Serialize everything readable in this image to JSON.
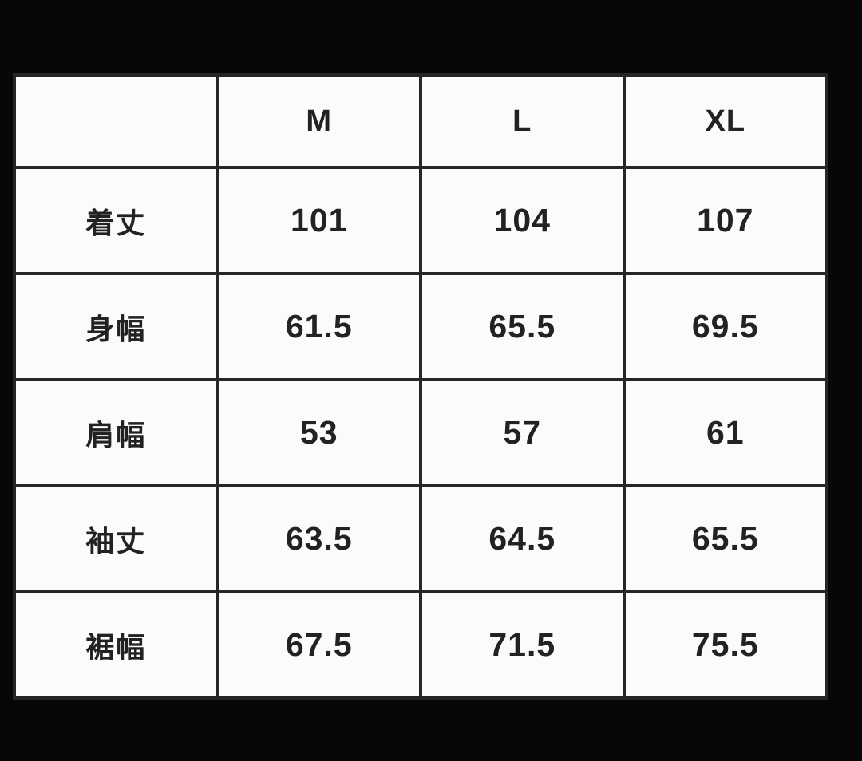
{
  "page": {
    "background_color": "#070707",
    "cell_background_color": "#fbfbfb",
    "gridline_color": "#262626",
    "text_color": "#222222"
  },
  "size_chart": {
    "corner_label": "",
    "columns": [
      "M",
      "L",
      "XL"
    ],
    "rows": [
      {
        "label": "着丈",
        "values": [
          "101",
          "104",
          "107"
        ]
      },
      {
        "label": "身幅",
        "values": [
          "61.5",
          "65.5",
          "69.5"
        ]
      },
      {
        "label": "肩幅",
        "values": [
          "53",
          "57",
          "61"
        ]
      },
      {
        "label": "袖丈",
        "values": [
          "63.5",
          "64.5",
          "65.5"
        ]
      },
      {
        "label": "裾幅",
        "values": [
          "67.5",
          "71.5",
          "75.5"
        ]
      }
    ]
  },
  "chart_data": {
    "type": "table",
    "title": "",
    "columns": [
      "",
      "M",
      "L",
      "XL"
    ],
    "row_labels": [
      "着丈",
      "身幅",
      "肩幅",
      "袖丈",
      "裾幅"
    ],
    "series": [
      {
        "name": "M",
        "values": [
          101,
          61.5,
          53,
          63.5,
          67.5
        ]
      },
      {
        "name": "L",
        "values": [
          104,
          65.5,
          57,
          64.5,
          71.5
        ]
      },
      {
        "name": "XL",
        "values": [
          107,
          69.5,
          61,
          65.5,
          75.5
        ]
      }
    ],
    "layout_hints": {
      "grid": true,
      "header_row": true,
      "background": "black",
      "cells": "white"
    }
  }
}
